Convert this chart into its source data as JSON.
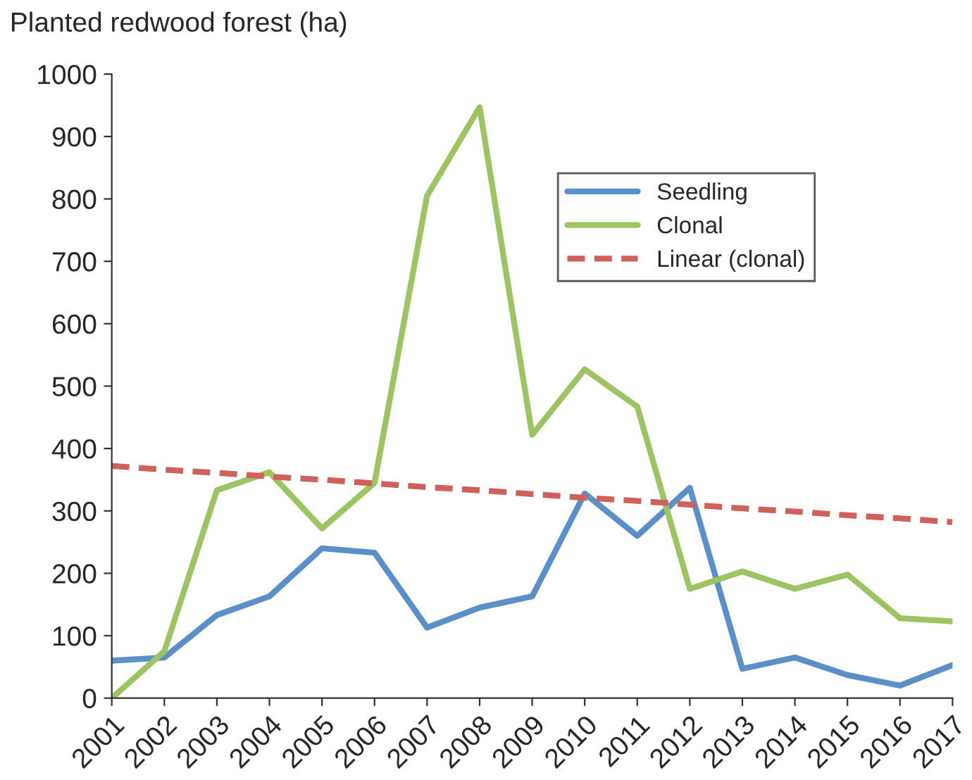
{
  "chart_data": {
    "type": "line",
    "ylabel": "Planted redwood forest (ha)",
    "categories": [
      "2001",
      "2002",
      "2003",
      "2004",
      "2005",
      "2006",
      "2007",
      "2008",
      "2009",
      "2010",
      "2011",
      "2012",
      "2013",
      "2014",
      "2015",
      "2016",
      "2017"
    ],
    "series": [
      {
        "name": "Seedling",
        "color": "#5b8fc9",
        "values": [
          60,
          65,
          133,
          163,
          240,
          233,
          113,
          145,
          163,
          328,
          260,
          337,
          47,
          65,
          37,
          20,
          53
        ]
      },
      {
        "name": "Clonal",
        "color": "#9dc462",
        "values": [
          0,
          75,
          333,
          362,
          272,
          345,
          805,
          947,
          422,
          527,
          467,
          175,
          203,
          175,
          198,
          128,
          123
        ]
      },
      {
        "name": "Linear (clonal)",
        "color": "#d0605a",
        "line_style": "dashed",
        "values": [
          372,
          366,
          361,
          355,
          350,
          344,
          338,
          333,
          327,
          321,
          316,
          310,
          304,
          299,
          293,
          288,
          282
        ]
      }
    ],
    "ylim": [
      0,
      1000
    ],
    "yticks": [
      0,
      100,
      200,
      300,
      400,
      500,
      600,
      700,
      800,
      900,
      1000
    ],
    "grid": false,
    "legend": "top right",
    "marker": "none"
  }
}
